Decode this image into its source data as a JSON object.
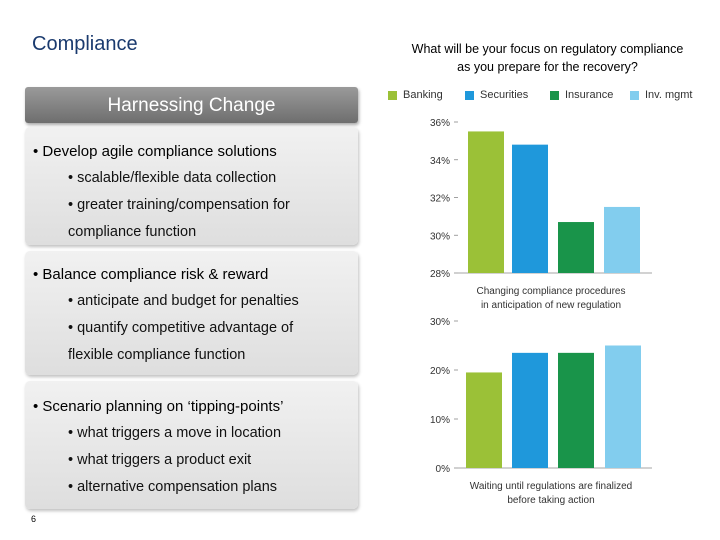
{
  "slide": {
    "title": "Compliance",
    "page_number": "6"
  },
  "left": {
    "header": "Harnessing Change",
    "panels": [
      {
        "heading": "• Develop agile compliance solutions",
        "items": [
          "• scalable/flexible data collection",
          "• greater training/compensation for",
          "compliance function"
        ]
      },
      {
        "heading": "• Balance compliance risk & reward",
        "items": [
          "• anticipate and budget for penalties",
          "• quantify competitive advantage of",
          "flexible compliance function"
        ]
      },
      {
        "heading": "• Scenario planning on ‘tipping-points’",
        "items": [
          "• what triggers a move in location",
          "• what triggers a product exit",
          "• alternative compensation plans"
        ]
      }
    ]
  },
  "right": {
    "question_line1": "What will be your focus on regulatory compliance",
    "question_line2": "as you prepare for the recovery?",
    "legend": [
      {
        "label": "Banking",
        "color": "#9bc137"
      },
      {
        "label": "Securities",
        "color": "#1f98db"
      },
      {
        "label": "Insurance",
        "color": "#19944a"
      },
      {
        "label": "Inv. mgmt",
        "color": "#82cdee"
      }
    ]
  },
  "chart_data": [
    {
      "type": "bar",
      "categories": [
        "Banking",
        "Securities",
        "Insurance",
        "Inv. mgmt"
      ],
      "values": [
        35.5,
        34.8,
        30.7,
        31.5
      ],
      "xlabel": "Changing compliance procedures in anticipation of new regulation",
      "xlabel_lines": [
        "Changing compliance procedures",
        "in anticipation of new regulation"
      ],
      "ylim": [
        28,
        36
      ],
      "yticks": [
        "28%",
        "30%",
        "32%",
        "34%",
        "36%"
      ],
      "ytick_values": [
        28,
        30,
        32,
        34,
        36
      ]
    },
    {
      "type": "bar",
      "categories": [
        "Banking",
        "Securities",
        "Insurance",
        "Inv. mgmt"
      ],
      "values": [
        19.5,
        23.5,
        23.5,
        25
      ],
      "xlabel": "Waiting until regulations are finalized before taking action",
      "xlabel_lines": [
        "Waiting until regulations are finalized",
        "before taking action"
      ],
      "ylim": [
        0,
        30
      ],
      "yticks": [
        "0%",
        "10%",
        "20%",
        "30%"
      ],
      "ytick_values": [
        0,
        10,
        20,
        30
      ]
    }
  ]
}
